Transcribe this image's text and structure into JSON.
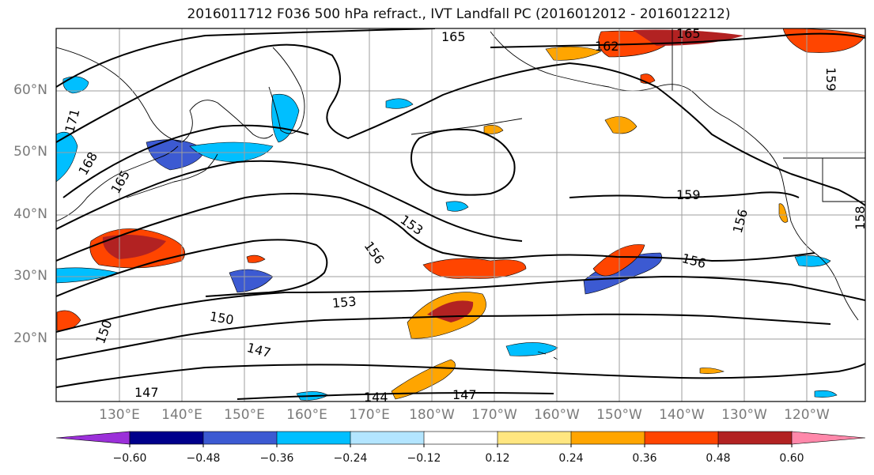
{
  "title": "2016011712 F036 500 hPa refract., IVT Landfall PC (2016012012 - 2016012212)",
  "map": {
    "lat_labels": [
      "60°N",
      "50°N",
      "40°N",
      "30°N",
      "20°N"
    ],
    "lon_labels": [
      "130°E",
      "140°E",
      "150°E",
      "160°E",
      "170°E",
      "180°W",
      "170°W",
      "160°W",
      "150°W",
      "140°W",
      "130°W",
      "120°W"
    ],
    "contour_labels": [
      "165",
      "162",
      "165",
      "159",
      "171",
      "168",
      "165",
      "159",
      "156",
      "153",
      "156",
      "156",
      "153",
      "150",
      "150",
      "147",
      "147",
      "144",
      "147",
      "158"
    ],
    "grid": true,
    "line_color": "#000000",
    "grid_color": "#9e9e9e"
  },
  "colorbar": {
    "colors": [
      "#9b30d9",
      "#00008b",
      "#3c5ad2",
      "#00bfff",
      "#b3e5ff",
      "#ffffff",
      "#ffe680",
      "#ffa500",
      "#ff4500",
      "#b22222",
      "#ff88aa"
    ],
    "tick_labels": [
      "−0.60",
      "−0.48",
      "−0.36",
      "−0.24",
      "−0.12",
      "0.12",
      "0.24",
      "0.36",
      "0.48",
      "0.60"
    ],
    "extend": "both"
  }
}
